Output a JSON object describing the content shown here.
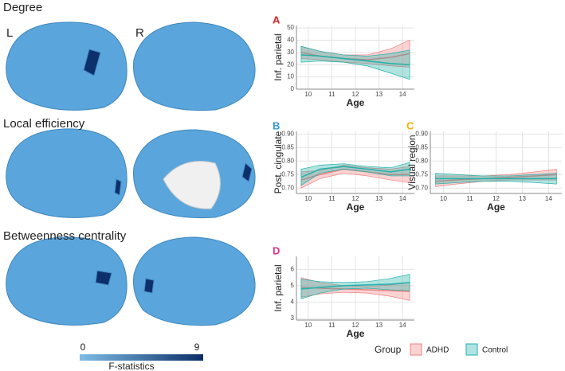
{
  "labels": {
    "degree": "Degree",
    "left": "L",
    "right": "R",
    "local": "Local efficiency",
    "between": "Betweenness centrality"
  },
  "colorbar": {
    "min": "0",
    "max": "9",
    "title": "F-statistics"
  },
  "legend": {
    "title": "Group",
    "items": [
      "ADHD",
      "Control"
    ]
  },
  "chart_data": [
    {
      "type": "line",
      "panel": "A",
      "xlabel": "Age",
      "ylabel": "Inf. parietal",
      "xlim": [
        9.5,
        14.5
      ],
      "xticks": [
        10,
        11,
        12,
        13,
        14
      ],
      "ylim": [
        0,
        52
      ],
      "yticks": [
        0,
        10,
        20,
        30,
        40,
        50
      ],
      "x": [
        9.7,
        10.5,
        11.5,
        12.5,
        13.5,
        14.3
      ],
      "series": [
        {
          "name": "ADHD",
          "color": "#f08080",
          "values": [
            30,
            27,
            25,
            24,
            26,
            29
          ],
          "lower": [
            25,
            24,
            22,
            21,
            19,
            18
          ],
          "upper": [
            35,
            31,
            28,
            28,
            33,
            40
          ]
        },
        {
          "name": "Control",
          "color": "#20b2aa",
          "values": [
            28,
            27,
            25,
            23,
            21,
            20
          ],
          "lower": [
            22,
            23,
            22,
            19,
            13,
            8
          ],
          "upper": [
            35,
            31,
            28,
            27,
            29,
            32
          ]
        }
      ]
    },
    {
      "type": "line",
      "panel": "B",
      "xlabel": "Age",
      "ylabel": "Post. cingulate",
      "xlim": [
        9.5,
        14.5
      ],
      "xticks": [
        10,
        11,
        12,
        13,
        14
      ],
      "ylim": [
        0.68,
        0.91
      ],
      "yticks": [
        {
          "value": 0.7,
          "label": "0.70"
        },
        0.75,
        {
          "value": 0.8,
          "label": "0.80"
        },
        0.85,
        {
          "value": 0.9,
          "label": "0.90"
        }
      ],
      "x": [
        9.7,
        10.5,
        11.5,
        12.5,
        13.5,
        14.3
      ],
      "series": [
        {
          "name": "ADHD",
          "color": "#f08080",
          "values": [
            0.73,
            0.75,
            0.77,
            0.76,
            0.75,
            0.75
          ],
          "lower": [
            0.7,
            0.735,
            0.755,
            0.745,
            0.73,
            0.72
          ],
          "upper": [
            0.76,
            0.765,
            0.785,
            0.775,
            0.77,
            0.78
          ]
        },
        {
          "name": "Control",
          "color": "#20b2aa",
          "values": [
            0.74,
            0.77,
            0.78,
            0.77,
            0.76,
            0.77
          ],
          "lower": [
            0.71,
            0.755,
            0.77,
            0.76,
            0.745,
            0.745
          ],
          "upper": [
            0.77,
            0.785,
            0.79,
            0.78,
            0.775,
            0.795
          ]
        }
      ]
    },
    {
      "type": "line",
      "panel": "C",
      "xlabel": "Age",
      "ylabel": "Visual region",
      "xlim": [
        9.5,
        14.5
      ],
      "xticks": [
        10,
        11,
        12,
        13,
        14
      ],
      "ylim": [
        0.68,
        0.91
      ],
      "yticks": [
        {
          "value": 0.7,
          "label": "0.70"
        },
        0.75,
        {
          "value": 0.8,
          "label": "0.80"
        },
        0.85,
        {
          "value": 0.9,
          "label": "0.90"
        }
      ],
      "x": [
        9.7,
        10.5,
        11.5,
        12.5,
        13.5,
        14.3
      ],
      "series": [
        {
          "name": "ADHD",
          "color": "#f08080",
          "values": [
            0.725,
            0.73,
            0.735,
            0.74,
            0.745,
            0.75
          ],
          "lower": [
            0.705,
            0.715,
            0.725,
            0.73,
            0.73,
            0.73
          ],
          "upper": [
            0.745,
            0.745,
            0.745,
            0.75,
            0.76,
            0.77
          ]
        },
        {
          "name": "Control",
          "color": "#20b2aa",
          "values": [
            0.735,
            0.735,
            0.735,
            0.735,
            0.735,
            0.735
          ],
          "lower": [
            0.715,
            0.72,
            0.725,
            0.725,
            0.72,
            0.715
          ],
          "upper": [
            0.755,
            0.75,
            0.745,
            0.745,
            0.75,
            0.755
          ]
        }
      ]
    },
    {
      "type": "line",
      "panel": "D",
      "xlabel": "Age",
      "ylabel": "Inf. parietal",
      "xlim": [
        9.5,
        14.5
      ],
      "xticks": [
        10,
        11,
        12,
        13,
        14
      ],
      "ylim": [
        2.9,
        6.8
      ],
      "yticks": [
        3,
        4,
        5,
        6
      ],
      "x": [
        9.7,
        10.5,
        11.5,
        12.5,
        13.5,
        14.3
      ],
      "series": [
        {
          "name": "ADHD",
          "color": "#f08080",
          "values": [
            4.9,
            4.85,
            4.8,
            4.75,
            4.7,
            4.65
          ],
          "lower": [
            4.3,
            4.5,
            4.6,
            4.55,
            4.35,
            4.1
          ],
          "upper": [
            5.5,
            5.2,
            5.0,
            4.95,
            5.05,
            5.2
          ]
        },
        {
          "name": "Control",
          "color": "#20b2aa",
          "values": [
            4.8,
            4.9,
            5.0,
            5.05,
            5.1,
            5.2
          ],
          "lower": [
            4.2,
            4.55,
            4.8,
            4.85,
            4.75,
            4.7
          ],
          "upper": [
            5.4,
            5.25,
            5.2,
            5.25,
            5.45,
            5.7
          ]
        }
      ]
    }
  ]
}
